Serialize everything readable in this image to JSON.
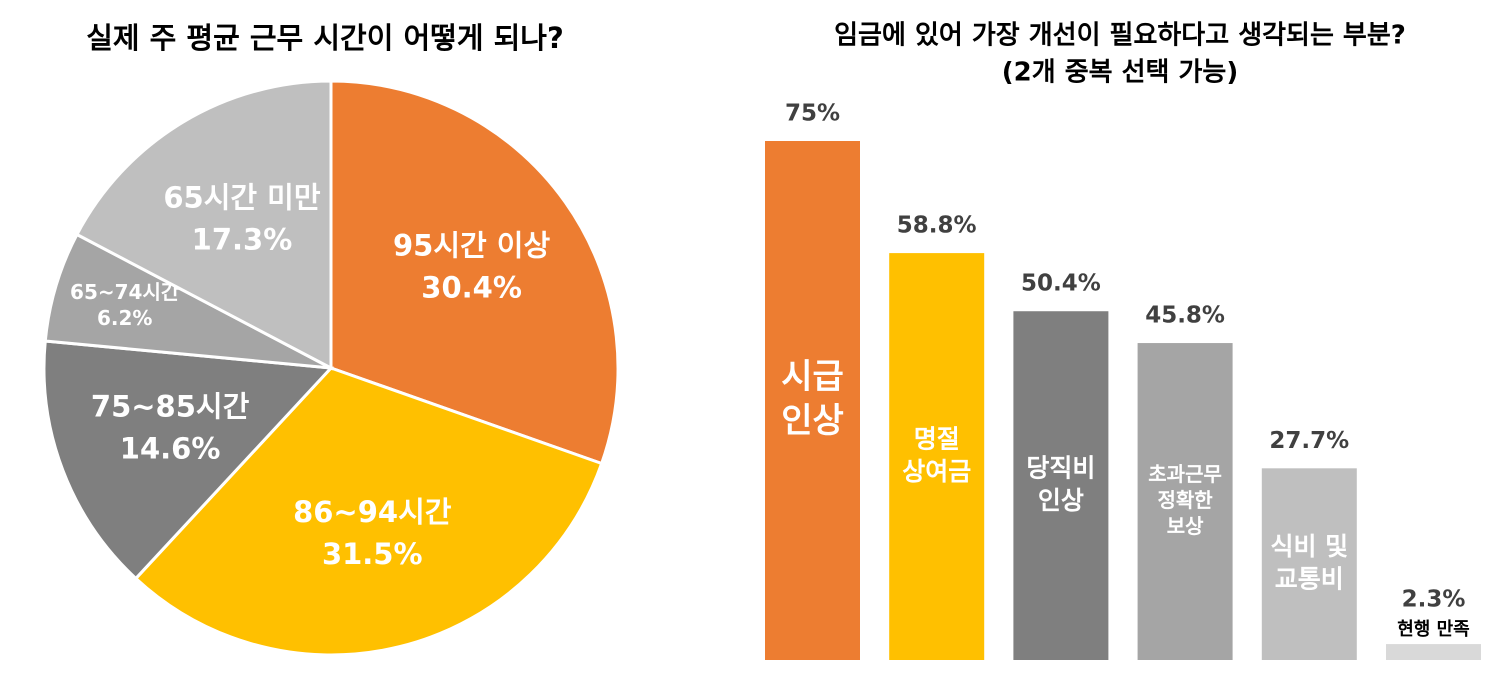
{
  "chart_data": [
    {
      "type": "pie",
      "title": "실제 주 평균 근무 시간이 어떻게 되나?",
      "categories": [
        "95시간 이상",
        "86~94시간",
        "75~85시간",
        "65~74시간",
        "65시간 미만"
      ],
      "values": [
        30.4,
        31.5,
        14.6,
        6.2,
        17.3
      ],
      "value_labels": [
        "30.4%",
        "31.5%",
        "14.6%",
        "6.2%",
        "17.3%"
      ],
      "colors": [
        "#ed7d31",
        "#ffc000",
        "#7f7f7f",
        "#a5a5a5",
        "#bfbfbf"
      ]
    },
    {
      "type": "bar",
      "title": "임금에 있어 가장 개선이 필요하다고 생각되는 부분?",
      "subtitle": "(2개 중복 선택 가능)",
      "categories": [
        [
          "시급",
          "인상"
        ],
        [
          "명절",
          "상여금"
        ],
        [
          "당직비",
          "인상"
        ],
        [
          "초과근무",
          "정확한",
          "보상"
        ],
        [
          "식비 및",
          "교통비"
        ],
        [
          "현행 만족"
        ]
      ],
      "values": [
        75,
        58.8,
        50.4,
        45.8,
        27.7,
        2.3
      ],
      "value_labels": [
        "75%",
        "58.8%",
        "50.4%",
        "45.8%",
        "27.7%",
        "2.3%"
      ],
      "colors": [
        "#ed7d31",
        "#ffc000",
        "#7f7f7f",
        "#a5a5a5",
        "#bfbfbf",
        "#d9d9d9"
      ]
    }
  ]
}
